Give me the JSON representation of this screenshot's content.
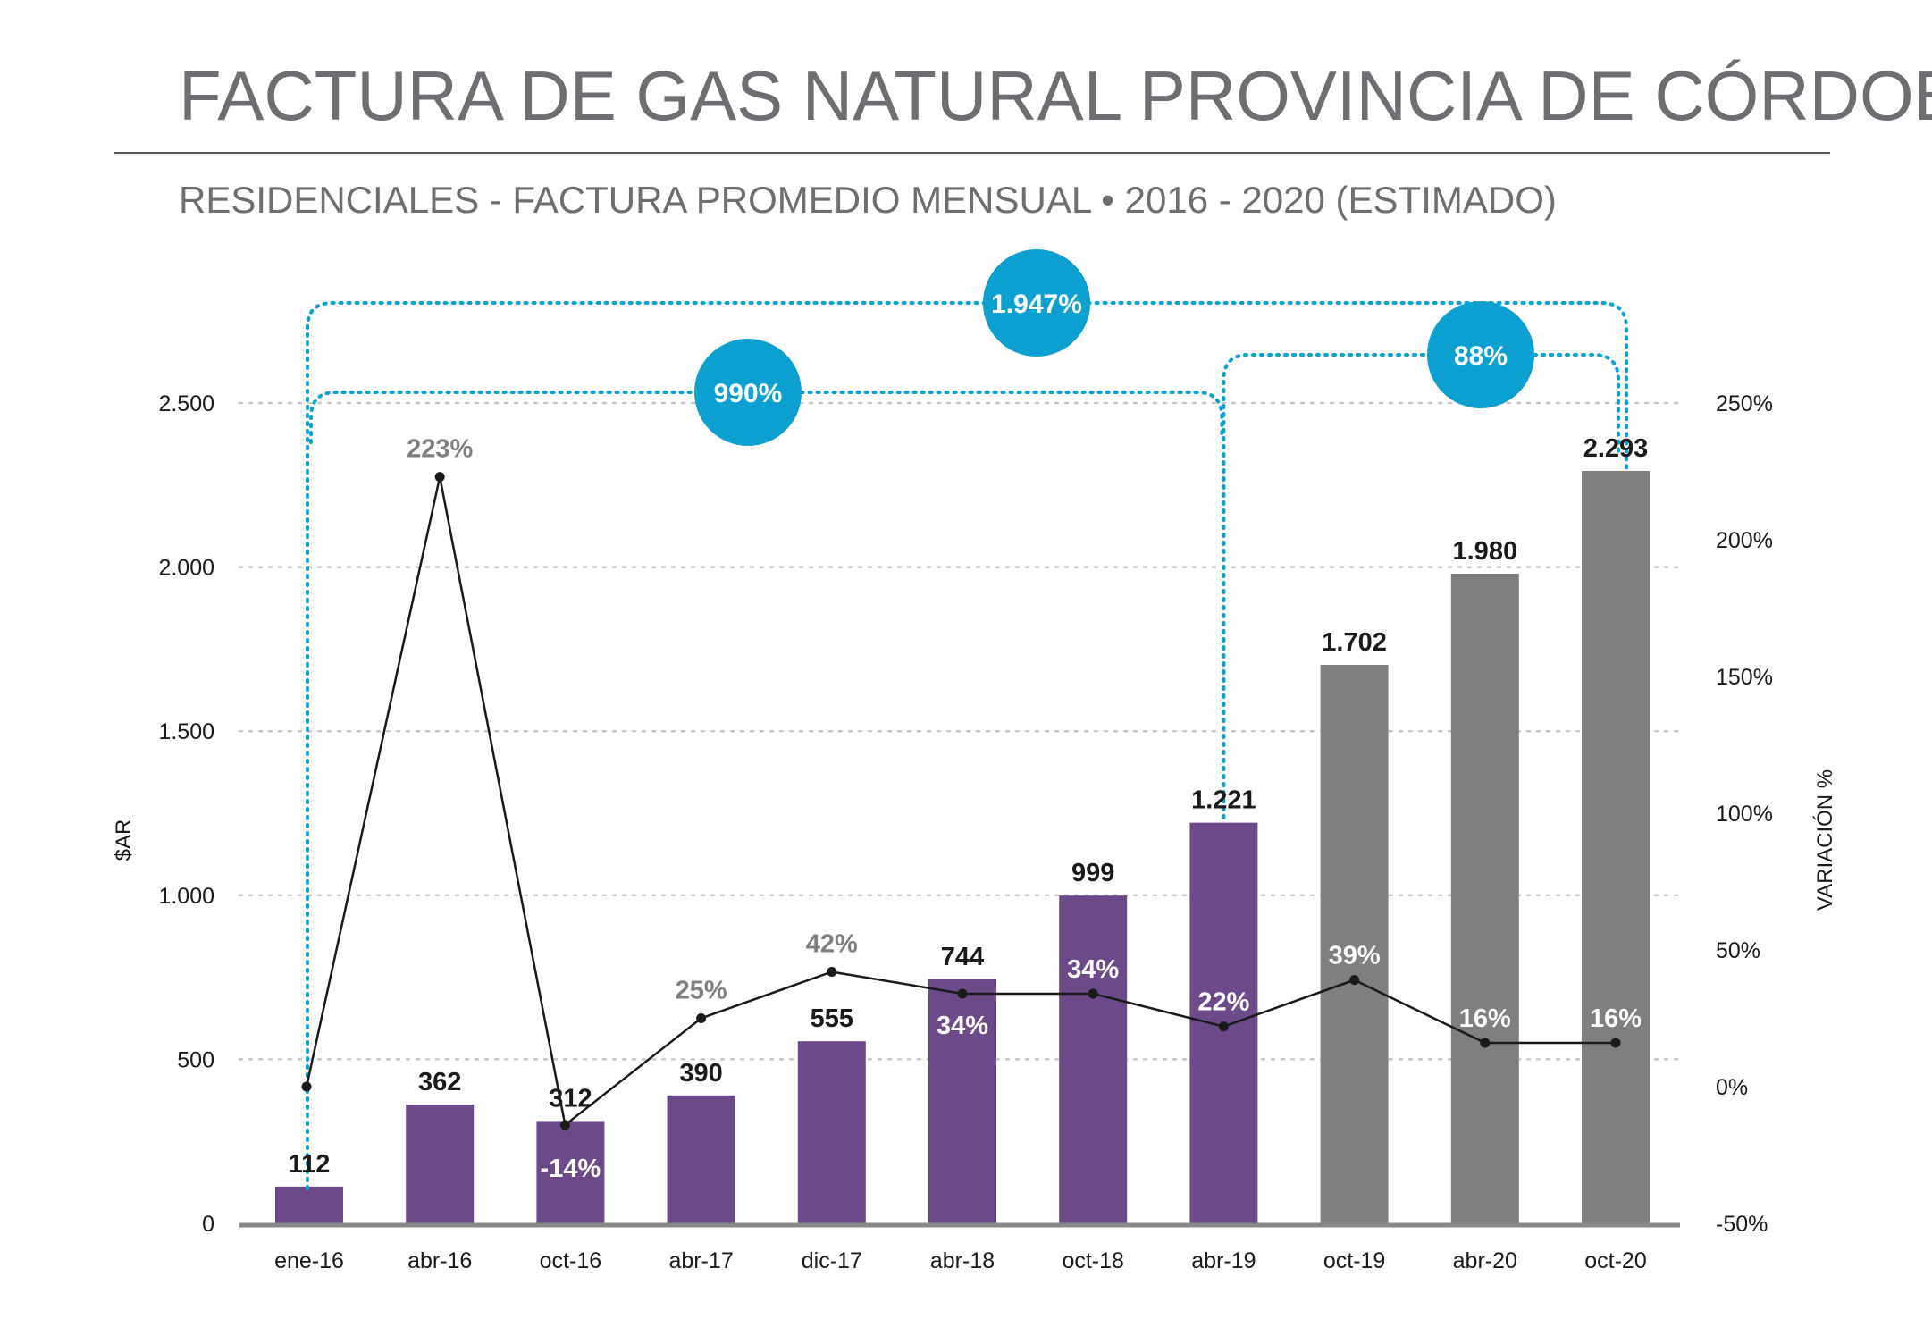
{
  "header": {
    "title": "FACTURA DE GAS NATURAL PROVINCIA DE CÓRDOBA",
    "subtitle": "RESIDENCIALES - FACTURA PROMEDIO MENSUAL • 2016 - 2020 (ESTIMADO)"
  },
  "chart_data": {
    "type": "bar",
    "title": "FACTURA DE GAS NATURAL PROVINCIA DE CÓRDOBA",
    "subtitle": "RESIDENCIALES - FACTURA PROMEDIO MENSUAL • 2016 - 2020 (ESTIMADO)",
    "xlabel": "",
    "ylabel": "$AR",
    "y2label": "VARIACIÓN %",
    "ylim": [
      0,
      2500
    ],
    "y_ticks": [
      0,
      500,
      1000,
      1500,
      2000,
      2500
    ],
    "y_tick_labels": [
      "0",
      "500",
      "1.000",
      "1.500",
      "2.000",
      "2.500"
    ],
    "y2lim": [
      -50,
      250
    ],
    "y2_ticks": [
      -50,
      0,
      50,
      100,
      150,
      200,
      250
    ],
    "y2_tick_labels": [
      "-50%",
      "0%",
      "50%",
      "100%",
      "150%",
      "200%",
      "250%"
    ],
    "grid": true,
    "categories": [
      "ene-16",
      "abr-16",
      "oct-16",
      "abr-17",
      "dic-17",
      "abr-18",
      "oct-18",
      "abr-19",
      "oct-19",
      "abr-20",
      "oct-20"
    ],
    "values": [
      112,
      362,
      312,
      390,
      555,
      744,
      999,
      1221,
      1702,
      1980,
      2293
    ],
    "value_labels": [
      "112",
      "362",
      "312",
      "390",
      "555",
      "744",
      "999",
      "1.221",
      "1.702",
      "1.980",
      "2.293"
    ],
    "bar_colors": [
      "#6c4a8a",
      "#6c4a8a",
      "#6c4a8a",
      "#6c4a8a",
      "#6c4a8a",
      "#6c4a8a",
      "#6c4a8a",
      "#6c4a8a",
      "#7f7f7f",
      "#7f7f7f",
      "#7f7f7f"
    ],
    "variation": [
      0,
      223,
      -14,
      25,
      42,
      34,
      34,
      22,
      39,
      16,
      16
    ],
    "variation_labels": [
      "",
      "223%",
      "-14%",
      "25%",
      "42%",
      "34%",
      "34%",
      "22%",
      "39%",
      "16%",
      "16%"
    ],
    "variation_label_colors": [
      "#7f7f7f",
      "#7f7f7f",
      "#ffffff",
      "#7f7f7f",
      "#7f7f7f",
      "#ffffff",
      "#ffffff",
      "#ffffff",
      "#ffffff",
      "#ffffff",
      "#ffffff"
    ],
    "line_color": "#1a1a1a",
    "annotations": [
      {
        "label": "1.947%",
        "from": "ene-16",
        "to": "oct-20"
      },
      {
        "label": "990%",
        "from": "ene-16",
        "to": "abr-19"
      },
      {
        "label": "88%",
        "from": "abr-19",
        "to": "oct-20"
      }
    ],
    "annotation_color": "#0ba0d0"
  }
}
